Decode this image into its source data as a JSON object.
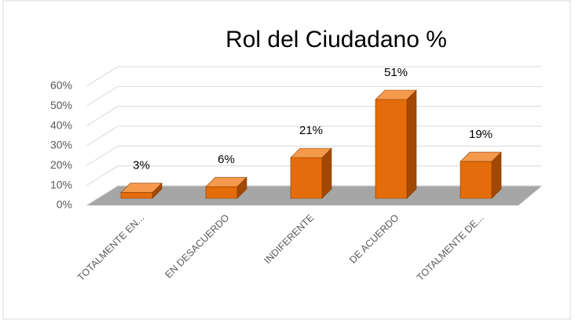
{
  "chart_data": {
    "type": "bar3d",
    "title": "Rol del Ciudadano %",
    "categories": [
      "TOTALMENTE EN...",
      "EN DESACUERDO",
      "INDIFERENTE",
      "DE ACUERDO",
      "TOTALMENTE DE..."
    ],
    "values": [
      3,
      6,
      21,
      51,
      19
    ],
    "value_labels": [
      "3%",
      "6%",
      "21%",
      "51%",
      "19%"
    ],
    "color": "#e46c0a",
    "ylim": [
      0,
      60
    ],
    "yticks": [
      {
        "value": 0,
        "label": "0%"
      },
      {
        "value": 10,
        "label": "10%"
      },
      {
        "value": 20,
        "label": "20%"
      },
      {
        "value": 30,
        "label": "30%"
      },
      {
        "value": 40,
        "label": "40%"
      },
      {
        "value": 50,
        "label": "50%"
      },
      {
        "value": 60,
        "label": "60%"
      }
    ],
    "grid": true
  }
}
